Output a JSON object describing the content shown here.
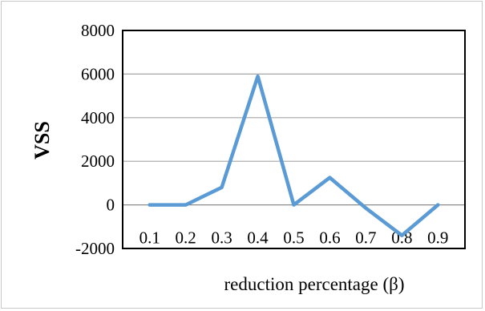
{
  "chart_data": {
    "type": "line",
    "title": "",
    "xlabel": "reduction percentage (β)",
    "ylabel": "VSS",
    "x": [
      "0.1",
      "0.2",
      "0.3",
      "0.4",
      "0.5",
      "0.6",
      "0.7",
      "0.8",
      "0.9"
    ],
    "series": [
      {
        "values": [
          0,
          0,
          800,
          5900,
          0,
          1250,
          -150,
          -1400,
          0
        ],
        "color": "#5b9bd5"
      }
    ],
    "ylim": [
      -2000,
      8000
    ],
    "yticks": [
      "8000",
      "6000",
      "4000",
      "2000",
      "0",
      "-2000"
    ],
    "grid": true,
    "legend": "none"
  }
}
